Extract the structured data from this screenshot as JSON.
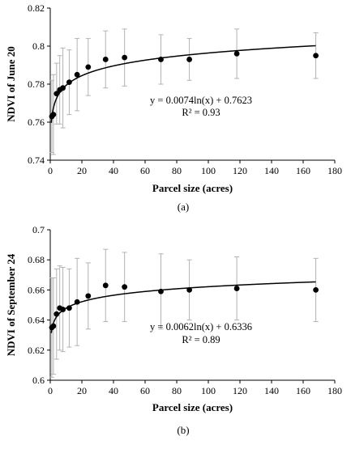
{
  "chart_data": [
    {
      "type": "scatter",
      "panel_label": "(a)",
      "xlabel": "Parcel size (acres)",
      "ylabel": "NDVI of June 20",
      "xlim": [
        0,
        180
      ],
      "ylim": [
        0.74,
        0.82
      ],
      "xticks": [
        0,
        20,
        40,
        60,
        80,
        100,
        120,
        140,
        160,
        180
      ],
      "yticks": [
        0.74,
        0.76,
        0.78,
        0.8,
        0.82
      ],
      "ytick_labels": [
        "0.74",
        "0.76",
        "0.78",
        "0.8",
        "0.82"
      ],
      "grid": false,
      "x": [
        1,
        2,
        4,
        6,
        8,
        12,
        17,
        24,
        35,
        47,
        70,
        88,
        118,
        168
      ],
      "y": [
        0.763,
        0.764,
        0.775,
        0.777,
        0.778,
        0.781,
        0.785,
        0.789,
        0.793,
        0.794,
        0.793,
        0.793,
        0.796,
        0.795
      ],
      "y_err": [
        0.019,
        0.021,
        0.016,
        0.018,
        0.021,
        0.017,
        0.019,
        0.015,
        0.015,
        0.015,
        0.013,
        0.011,
        0.013,
        0.012
      ],
      "fit": {
        "a": 0.0074,
        "b": 0.7623
      },
      "equation": "y = 0.0074ln(x) + 0.7623",
      "r2_text": "R² = 0.93"
    },
    {
      "type": "scatter",
      "panel_label": "(b)",
      "xlabel": "Parcel size (acres)",
      "ylabel": "NDVI of September 24",
      "xlim": [
        0,
        180
      ],
      "ylim": [
        0.6,
        0.7
      ],
      "xticks": [
        0,
        20,
        40,
        60,
        80,
        100,
        120,
        140,
        160,
        180
      ],
      "yticks": [
        0.6,
        0.62,
        0.64,
        0.66,
        0.68,
        0.7
      ],
      "ytick_labels": [
        "0.6",
        "0.62",
        "0.64",
        "0.66",
        "0.68",
        "0.7"
      ],
      "grid": false,
      "x": [
        1,
        2,
        4,
        6,
        8,
        12,
        17,
        24,
        35,
        47,
        70,
        88,
        118,
        168
      ],
      "y": [
        0.635,
        0.636,
        0.644,
        0.648,
        0.647,
        0.648,
        0.652,
        0.656,
        0.663,
        0.662,
        0.659,
        0.66,
        0.661,
        0.66
      ],
      "y_err": [
        0.033,
        0.032,
        0.03,
        0.028,
        0.028,
        0.026,
        0.029,
        0.022,
        0.024,
        0.023,
        0.025,
        0.02,
        0.021,
        0.021
      ],
      "fit": {
        "a": 0.0062,
        "b": 0.6336
      },
      "equation": "y = 0.0062ln(x) + 0.6336",
      "r2_text": "R² = 0.89"
    }
  ],
  "colors": {
    "points": "#000000",
    "error_bars": "#b3b3b3",
    "axes": "#000000",
    "fit_line": "#000000"
  }
}
